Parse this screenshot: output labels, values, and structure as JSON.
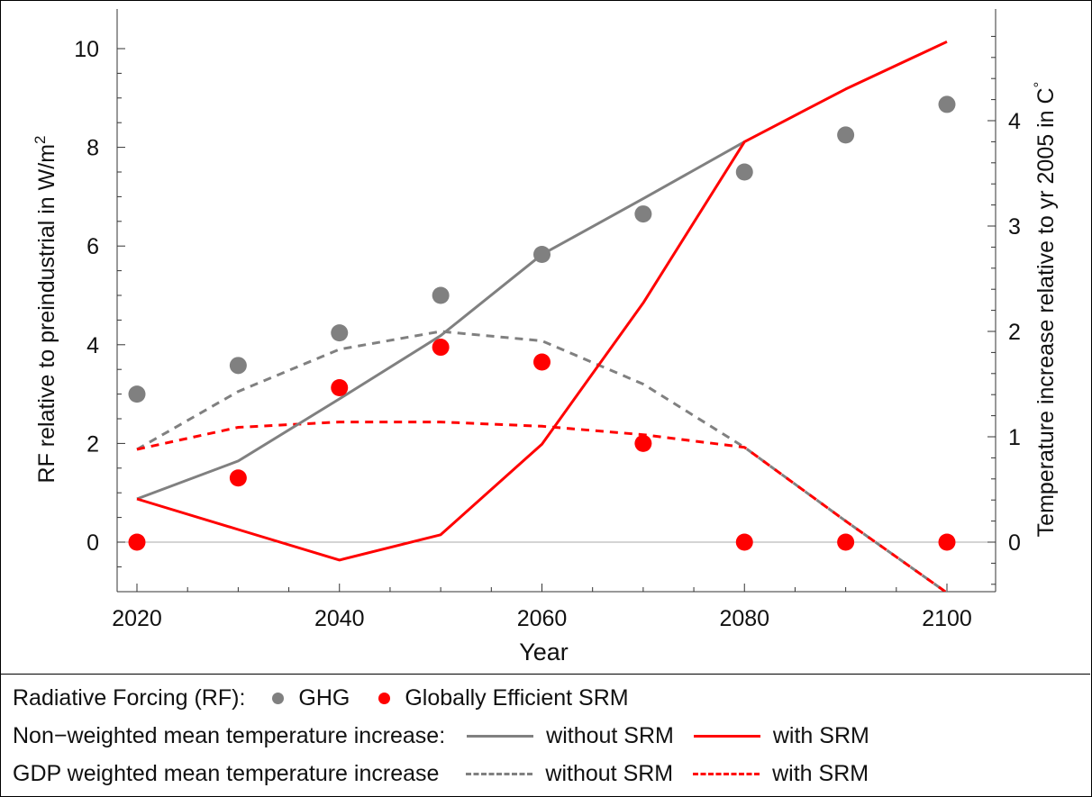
{
  "chart_data": {
    "type": "line",
    "xlabel": "Year",
    "ylabel_left": "RF relative to preindustrial in W/m",
    "ylabel_left_superscript": "2",
    "ylabel_right": "Temperature increase relative to yr 2005 in C",
    "ylabel_right_superscript": "°",
    "xlim": [
      2020,
      2100
    ],
    "ylim_left": [
      -1,
      10
    ],
    "ylim_right": [
      -0.47,
      4.9
    ],
    "x_ticks": [
      2020,
      2040,
      2060,
      2080,
      2100
    ],
    "x_tick_labels": [
      "2020",
      "2040",
      "2060",
      "2080",
      "2100"
    ],
    "y_left_ticks": [
      0,
      2,
      4,
      6,
      8,
      10
    ],
    "y_left_tick_labels": [
      "0",
      "2",
      "4",
      "6",
      "8",
      "10"
    ],
    "y_right_ticks": [
      0,
      1,
      2,
      3,
      4
    ],
    "y_right_tick_labels": [
      "0",
      "1",
      "2",
      "3",
      "4"
    ],
    "zero_line": true,
    "grid": false,
    "points": [
      {
        "name": "GHG",
        "axis": "left",
        "color": "#808080",
        "x": [
          2020,
          2030,
          2040,
          2050,
          2060,
          2070,
          2080,
          2090,
          2100
        ],
        "y": [
          3.0,
          3.58,
          4.24,
          5.0,
          5.83,
          6.65,
          7.5,
          8.25,
          8.87
        ]
      },
      {
        "name": "Globally Efficient SRM",
        "axis": "left",
        "color": "#ff0000",
        "x": [
          2020,
          2030,
          2040,
          2050,
          2060,
          2070,
          2080,
          2090,
          2100
        ],
        "y": [
          0.0,
          1.3,
          3.13,
          3.95,
          3.65,
          2.0,
          0.0,
          0.0,
          0.0
        ]
      }
    ],
    "series": [
      {
        "name": "Non−weighted mean temperature increase: without SRM",
        "axis": "right",
        "color": "#808080",
        "dash": false,
        "x": [
          2020,
          2030,
          2040,
          2050,
          2060,
          2070,
          2080
        ],
        "y": [
          0.41,
          0.77,
          1.36,
          1.96,
          2.73,
          3.26,
          3.8
        ]
      },
      {
        "name": "Non−weighted mean temperature increase: with SRM",
        "axis": "right",
        "color": "#ff0000",
        "dash": false,
        "x": [
          2020,
          2030,
          2040,
          2050,
          2060,
          2070,
          2080,
          2090,
          2100
        ],
        "y": [
          0.41,
          0.12,
          -0.17,
          0.07,
          0.93,
          2.27,
          3.8,
          4.3,
          4.75
        ]
      },
      {
        "name": "GDP weighted mean temperature increase: without SRM",
        "axis": "right",
        "color": "#808080",
        "dash": true,
        "x": [
          2020,
          2030,
          2040,
          2050,
          2060,
          2070,
          2080,
          2090,
          2100
        ],
        "y": [
          0.88,
          1.43,
          1.83,
          2.0,
          1.91,
          1.5,
          0.9,
          0.2,
          -0.48
        ]
      },
      {
        "name": "GDP weighted mean temperature increase: with SRM",
        "axis": "right",
        "color": "#ff0000",
        "dash": true,
        "x": [
          2020,
          2030,
          2040,
          2050,
          2060,
          2070,
          2080,
          2090,
          2100
        ],
        "y": [
          0.88,
          1.09,
          1.14,
          1.14,
          1.1,
          1.02,
          0.9,
          0.2,
          -0.48
        ]
      }
    ]
  },
  "legend": {
    "rf_label": "Radiative Forcing (RF):",
    "ghg": "GHG",
    "srm": "Globally Efficient SRM",
    "nonweighted_label": "Non−weighted mean temperature increase:",
    "gdp_label": "GDP weighted mean temperature increase",
    "without_srm": "without SRM",
    "with_srm": "with SRM"
  }
}
